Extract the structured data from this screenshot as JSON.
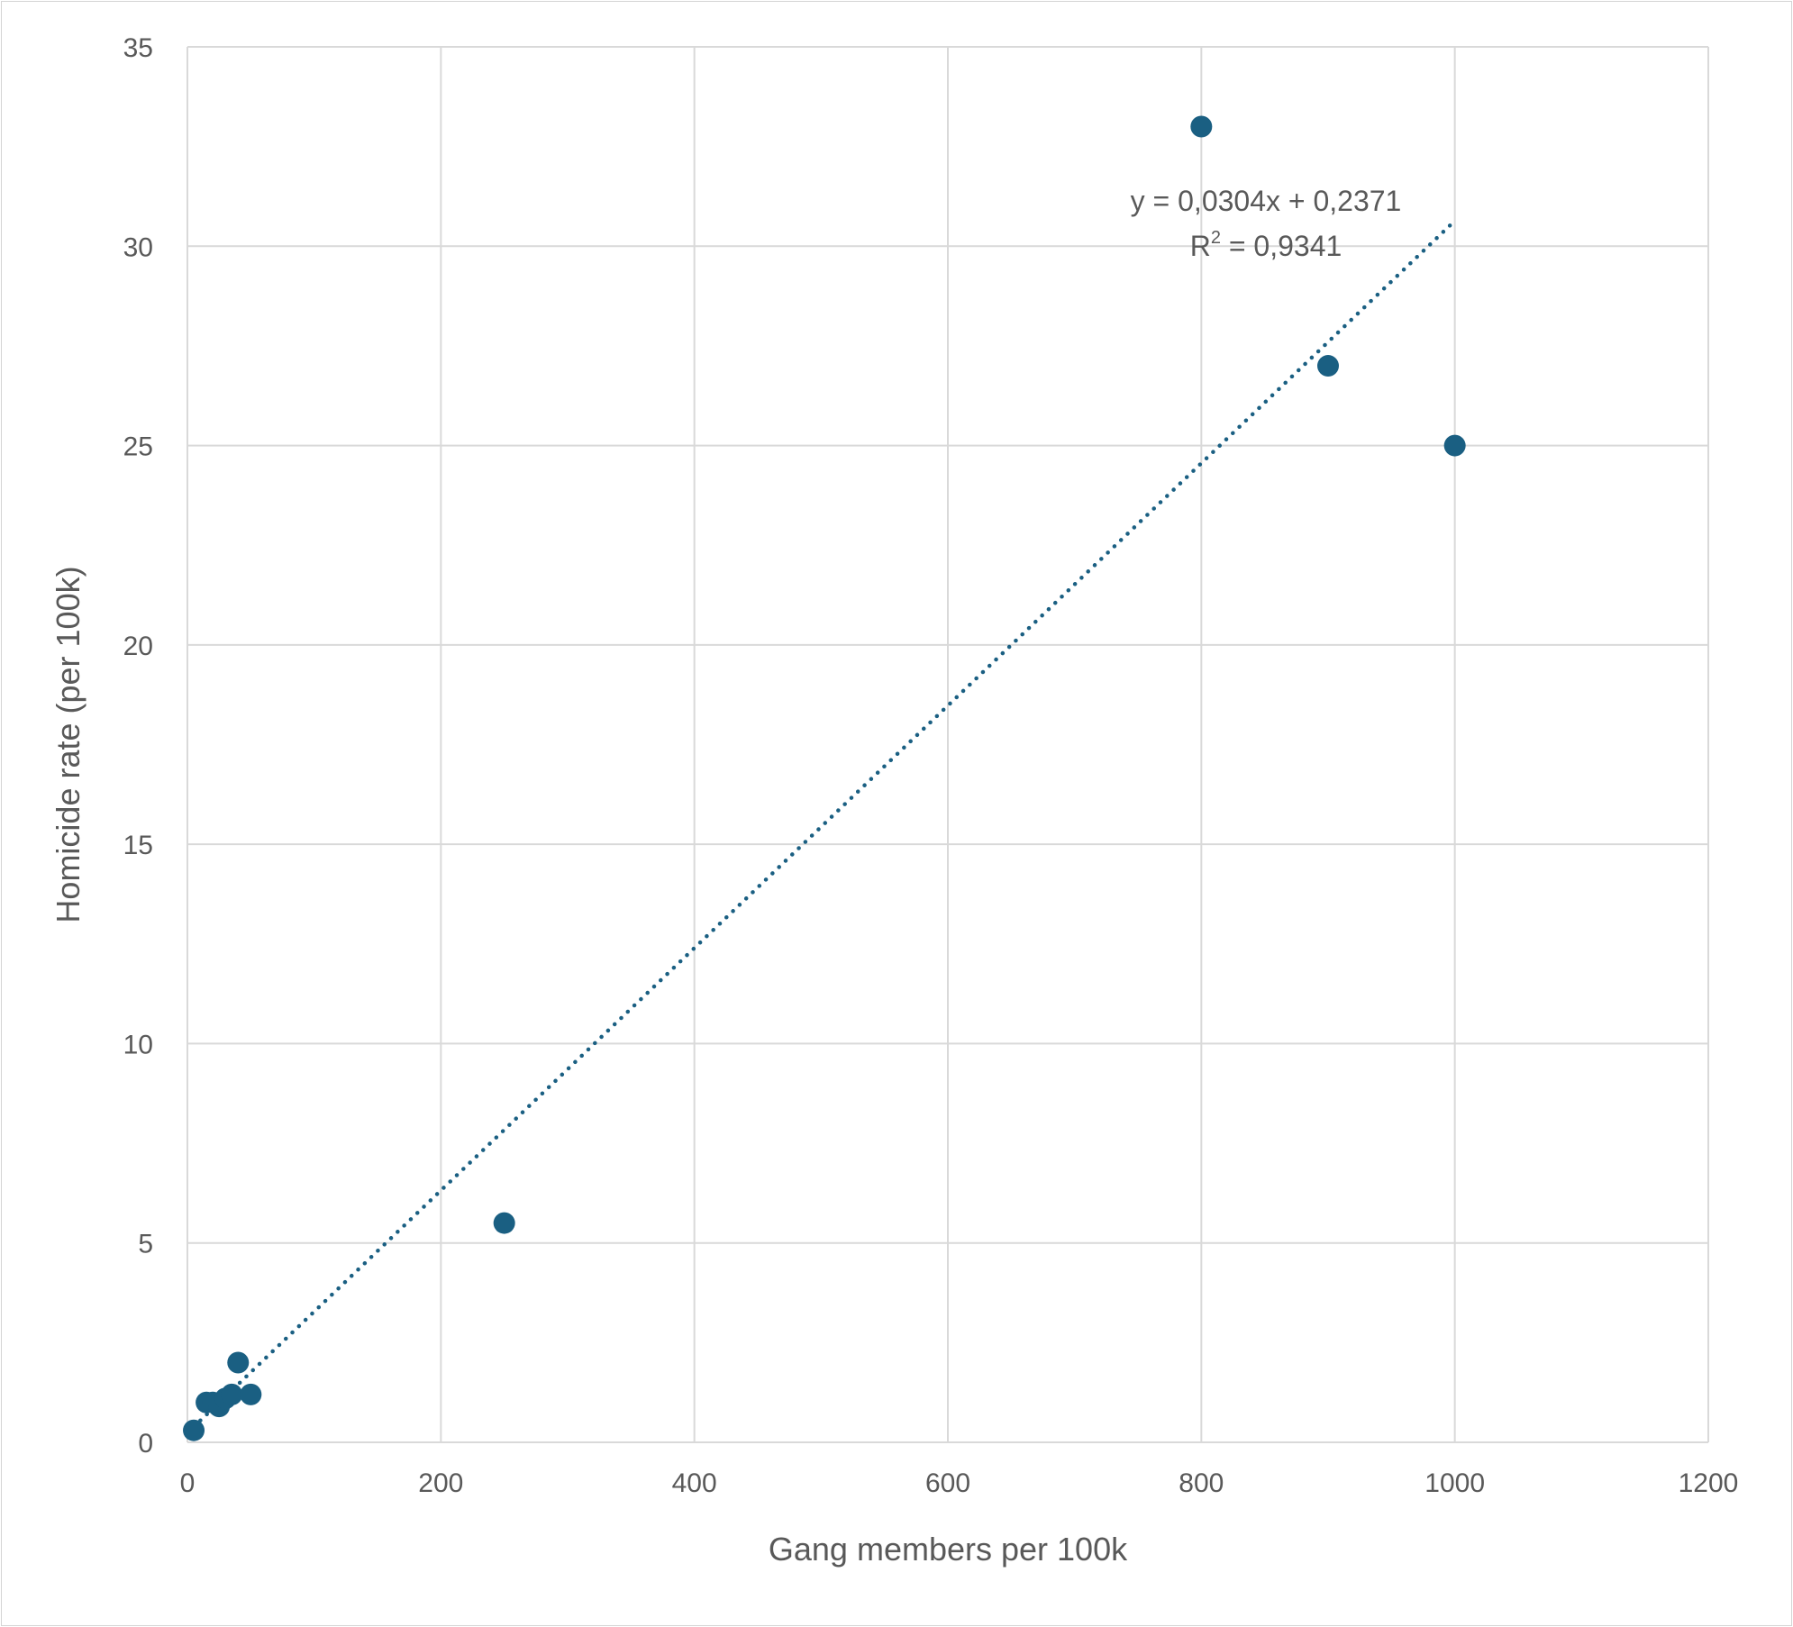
{
  "chart_data": {
    "type": "scatter",
    "title": "",
    "xlabel": "Gang members per 100k",
    "ylabel": "Homicide rate (per 100k)",
    "xlim": [
      0,
      1200
    ],
    "ylim": [
      0,
      35
    ],
    "x_ticks": [
      0,
      200,
      400,
      600,
      800,
      1000,
      1200
    ],
    "y_ticks": [
      0,
      5,
      10,
      15,
      20,
      25,
      30,
      35
    ],
    "x_tick_labels": [
      "0",
      "200",
      "400",
      "600",
      "800",
      "1000",
      "1200"
    ],
    "y_tick_labels": [
      "0",
      "5",
      "10",
      "15",
      "20",
      "25",
      "30",
      "35"
    ],
    "grid": true,
    "legend": "none",
    "marker_color": "#1a5f82",
    "series": [
      {
        "points": [
          {
            "x": 5,
            "y": 0.3
          },
          {
            "x": 15,
            "y": 1.0
          },
          {
            "x": 20,
            "y": 1.0
          },
          {
            "x": 25,
            "y": 0.9
          },
          {
            "x": 30,
            "y": 1.1
          },
          {
            "x": 35,
            "y": 1.2
          },
          {
            "x": 40,
            "y": 2.0
          },
          {
            "x": 50,
            "y": 1.2
          },
          {
            "x": 250,
            "y": 5.5
          },
          {
            "x": 800,
            "y": 33.0
          },
          {
            "x": 900,
            "y": 27.0
          },
          {
            "x": 1000,
            "y": 25.0
          }
        ]
      }
    ],
    "trendline": {
      "type": "linear",
      "slope": 0.0304,
      "intercept": 0.2371,
      "x_range": [
        5,
        1000
      ],
      "style": "dotted",
      "equation_label": "y = 0,0304x + 0,2371",
      "r_squared_prefix": "R",
      "r_squared_superscript": "2",
      "r_squared_value": " = 0,9341"
    }
  }
}
